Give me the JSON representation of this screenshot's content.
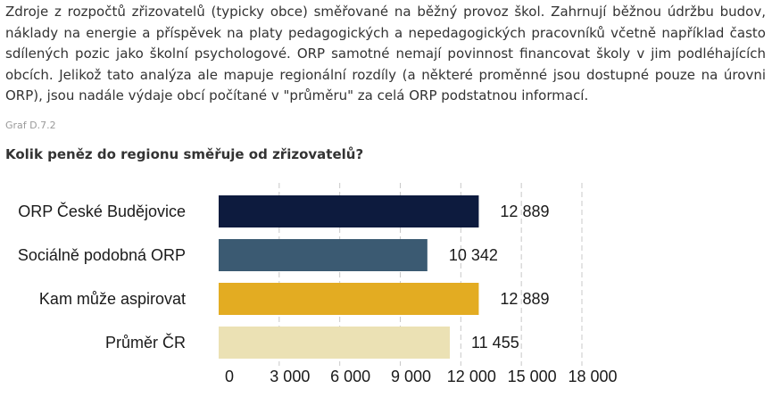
{
  "intro_text": "Zdroje z rozpočtů zřizovatelů (typicky obce) směřované na běžný provoz škol. Zahrnují běžnou údržbu budov, náklady na energie a příspěvek na platy pedagogických a nepedagogických pracovníků včetně například často sdílených pozic jako školní psychologové. ORP samotné nemají povinnost financovat školy v jim podléhajících obcích. Jelikož tato analýza ale mapuje regionální rozdíly (a některé proměnné jsou dostupné pouze na úrovni ORP), jsou nadále výdaje obcí počítané v \"průměru\" za celá ORP podstatnou informací.",
  "graf_code": "Graf D.7.2",
  "chart_title": "Kolik peněz do regionu směřuje od zřizovatelů?",
  "chart_data": {
    "type": "bar",
    "orientation": "horizontal",
    "title": "Kolik peněz do regionu směřuje od zřizovatelů?",
    "categories": [
      "ORP České Budějovice",
      "Sociálně podobná ORP",
      "Kam může aspirovat",
      "Průměr ČR"
    ],
    "values": [
      12889,
      10342,
      12889,
      11455
    ],
    "value_labels": [
      "12 889",
      "10 342",
      "12 889",
      "11 455"
    ],
    "colors": [
      "#0d1b3e",
      "#3b5a72",
      "#e3ac22",
      "#ebe1b4"
    ],
    "xlim": [
      0,
      18000
    ],
    "xticks": [
      0,
      3000,
      6000,
      9000,
      12000,
      15000,
      18000
    ],
    "xtick_labels": [
      "0",
      "3 000",
      "6 000",
      "9 000",
      "12 000",
      "15 000",
      "18 000"
    ],
    "grid": "vertical dashed",
    "xlabel": "",
    "ylabel": ""
  }
}
